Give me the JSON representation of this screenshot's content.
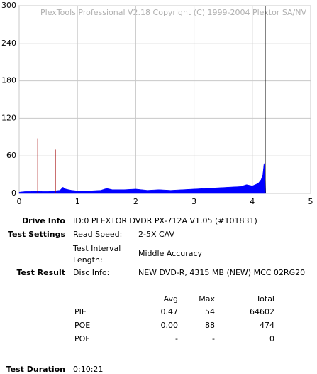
{
  "chart_data": {
    "type": "line",
    "watermark": "PlexTools Professional V2.18 Copyright (C) 1999-2004 Plextor SA/NV",
    "xlim": [
      0,
      5
    ],
    "xticks": [
      0,
      1,
      2,
      3,
      4,
      5
    ],
    "ylim": [
      0,
      300
    ],
    "yticks": [
      0,
      60,
      120,
      180,
      240,
      300
    ],
    "grid": true,
    "series": [
      {
        "color": "#0000ff",
        "style": "area",
        "x": [
          0,
          0.1,
          0.2,
          0.3,
          0.4,
          0.5,
          0.6,
          0.7,
          0.75,
          0.8,
          0.9,
          1.0,
          1.2,
          1.4,
          1.5,
          1.6,
          1.8,
          2.0,
          2.2,
          2.4,
          2.6,
          2.8,
          3.0,
          3.2,
          3.4,
          3.6,
          3.8,
          3.9,
          4.0,
          4.1,
          4.15,
          4.18,
          4.2,
          4.22,
          4.23
        ],
        "values": [
          2,
          3,
          3,
          4,
          3,
          3,
          4,
          5,
          10,
          7,
          5,
          4,
          4,
          5,
          8,
          6,
          6,
          7,
          5,
          6,
          5,
          6,
          7,
          8,
          9,
          10,
          11,
          14,
          12,
          16,
          22,
          30,
          48,
          40,
          0
        ]
      },
      {
        "color": "#a00000",
        "style": "spike",
        "x": [
          0.32,
          0.62
        ],
        "values": [
          88,
          70
        ]
      },
      {
        "color": "#000000",
        "style": "spike",
        "x": [
          4.22
        ],
        "values": [
          300
        ]
      }
    ]
  },
  "info": {
    "drive_info": {
      "label": "Drive Info",
      "value": "ID:0 PLEXTOR DVDR PX-712A V1.05 (#101831)"
    },
    "test_settings": {
      "label": "Test Settings",
      "read_speed": {
        "label": "Read Speed:",
        "value": "2-5X CAV"
      },
      "interval": {
        "label": "Test Interval Length:",
        "value": "Middle Accuracy"
      }
    },
    "test_result": {
      "label": "Test Result",
      "disc": {
        "label": "Disc Info:",
        "value": "NEW DVD-R, 4315 MB (NEW) MCC 02RG20"
      }
    },
    "stats": {
      "header": [
        "Avg",
        "Max",
        "Total"
      ],
      "rows": [
        [
          "PIE",
          "0.47",
          "54",
          "64602"
        ],
        [
          "POE",
          "0.00",
          "88",
          "474"
        ],
        [
          "POF",
          "-",
          "-",
          "0"
        ]
      ]
    },
    "duration": {
      "label": "Test Duration",
      "value": "0:10:21"
    }
  }
}
